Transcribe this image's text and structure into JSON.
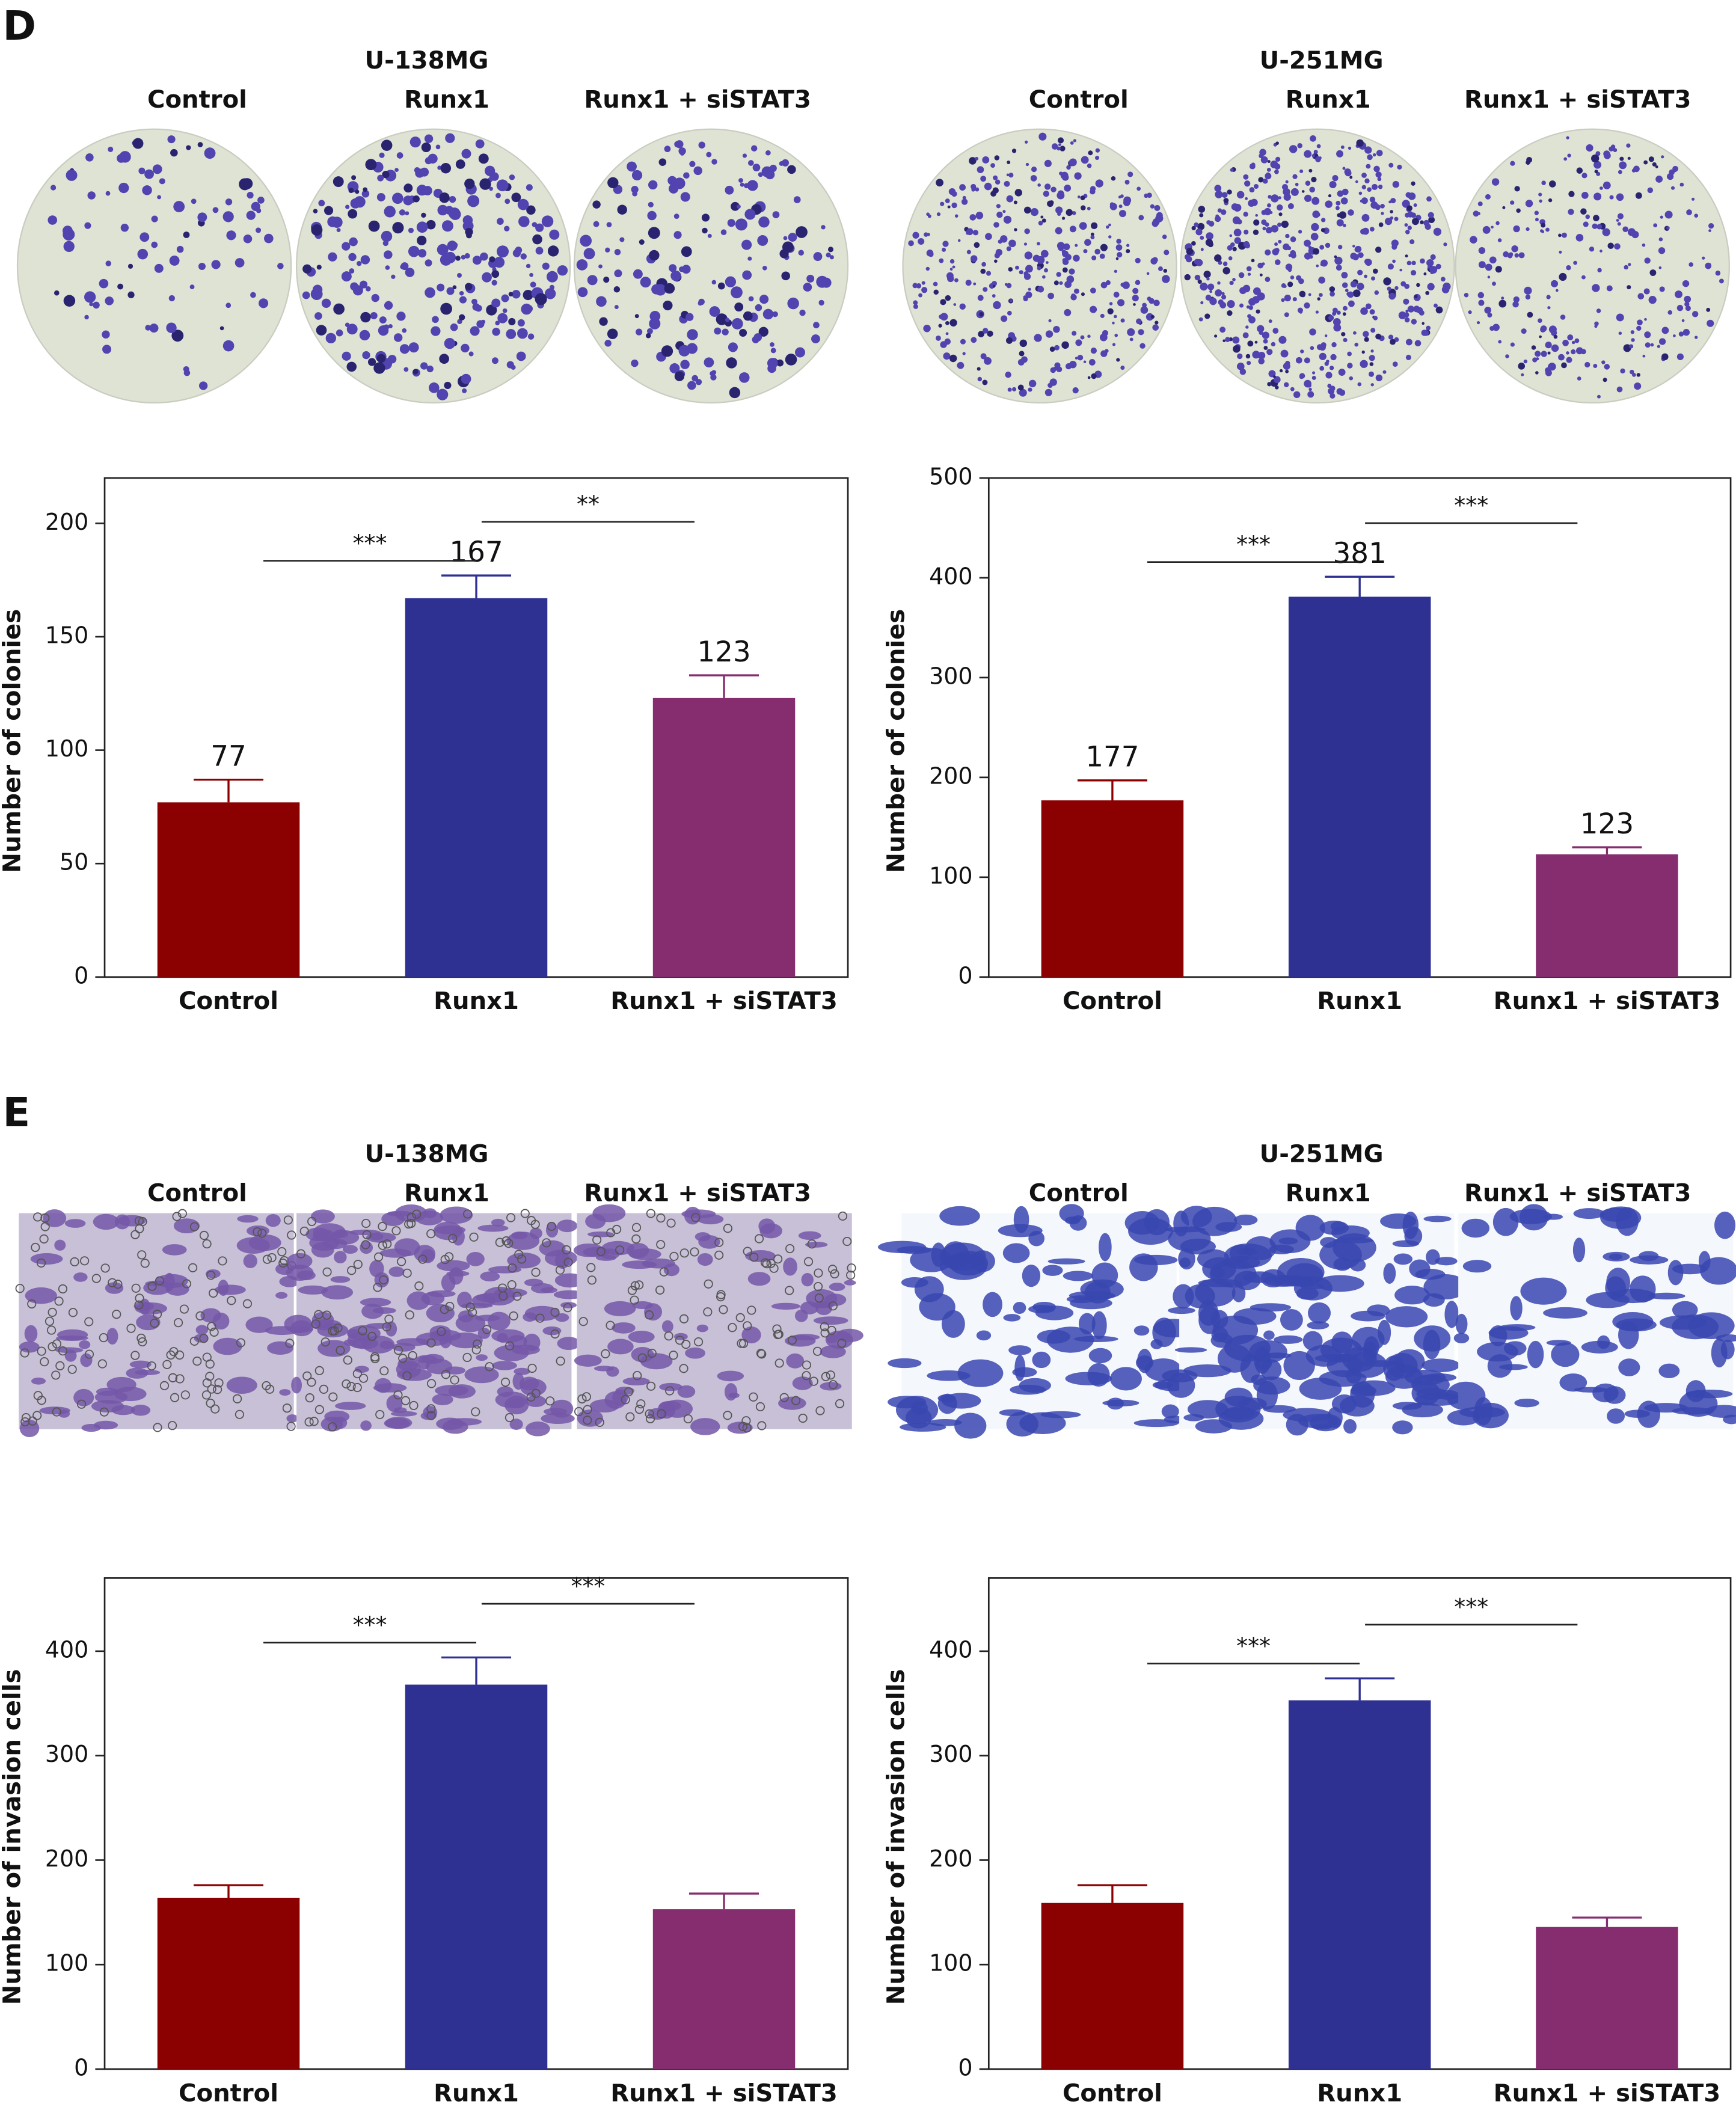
{
  "panels": [
    {
      "label": "D",
      "groups": [
        {
          "title": "U-138MG",
          "columns": [
            "Control",
            "Runx1",
            "Runx1 + siSTAT3"
          ]
        },
        {
          "title": "U-251MG",
          "columns": [
            "Control",
            "Runx1",
            "Runx1 + siSTAT3"
          ]
        }
      ]
    },
    {
      "label": "E",
      "groups": [
        {
          "title": "U-138MG",
          "columns": [
            "Control",
            "Runx1",
            "Runx1 + siSTAT3"
          ]
        },
        {
          "title": "U-251MG",
          "columns": [
            "Control",
            "Runx1",
            "Runx1 + siSTAT3"
          ]
        }
      ]
    }
  ],
  "chart_data": [
    {
      "type": "bar",
      "ylabel": "Number of colonies",
      "categories": [
        "Control",
        "Runx1",
        "Runx1 + siSTAT3"
      ],
      "values": [
        77,
        167,
        123
      ],
      "errors": [
        10,
        10,
        10
      ],
      "colors": [
        "#8b0000",
        "#2e3192",
        "#862d6f"
      ],
      "show_values": true,
      "ylim": [
        0,
        220
      ],
      "yticks": [
        0,
        50,
        100,
        150,
        200
      ],
      "annotations": [
        {
          "text": "***",
          "from": 0,
          "to": 1
        },
        {
          "text": "**",
          "from": 1,
          "to": 2
        }
      ]
    },
    {
      "type": "bar",
      "ylabel": "Number of colonies",
      "categories": [
        "Control",
        "Runx1",
        "Runx1 + siSTAT3"
      ],
      "values": [
        177,
        381,
        123
      ],
      "errors": [
        20,
        20,
        7
      ],
      "colors": [
        "#8b0000",
        "#2e3192",
        "#862d6f"
      ],
      "show_values": true,
      "ylim": [
        0,
        500
      ],
      "yticks": [
        0,
        100,
        200,
        300,
        400,
        500
      ],
      "annotations": [
        {
          "text": "***",
          "from": 0,
          "to": 1
        },
        {
          "text": "***",
          "from": 1,
          "to": 2
        }
      ]
    },
    {
      "type": "bar",
      "ylabel": "Number of invasion cells",
      "categories": [
        "Control",
        "Runx1",
        "Runx1 + siSTAT3"
      ],
      "values": [
        164,
        368,
        153
      ],
      "errors": [
        12,
        26,
        15
      ],
      "colors": [
        "#8b0000",
        "#2e3192",
        "#862d6f"
      ],
      "show_values": false,
      "ylim": [
        0,
        470
      ],
      "yticks": [
        0,
        100,
        200,
        300,
        400
      ],
      "annotations": [
        {
          "text": "***",
          "from": 0,
          "to": 1
        },
        {
          "text": "***",
          "from": 1,
          "to": 2
        }
      ]
    },
    {
      "type": "bar",
      "ylabel": "Number of invasion cells",
      "categories": [
        "Control",
        "Runx1",
        "Runx1 + siSTAT3"
      ],
      "values": [
        159,
        353,
        136
      ],
      "errors": [
        17,
        21,
        9
      ],
      "colors": [
        "#8b0000",
        "#2e3192",
        "#862d6f"
      ],
      "show_values": false,
      "ylim": [
        0,
        470
      ],
      "yticks": [
        0,
        100,
        200,
        300,
        400
      ],
      "annotations": [
        {
          "text": "***",
          "from": 0,
          "to": 1
        },
        {
          "text": "***",
          "from": 1,
          "to": 2
        }
      ]
    }
  ]
}
